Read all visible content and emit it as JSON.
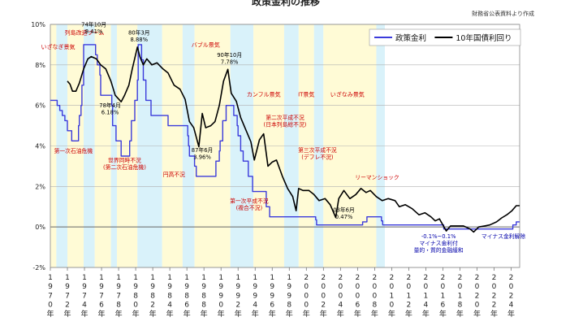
{
  "header": {
    "title_fragment": "政策金利の推移",
    "source": "財務省公表資料より作成"
  },
  "chart_data": {
    "type": "line",
    "title": "",
    "xlabel": "",
    "ylabel": "",
    "ylim": [
      -2,
      10
    ],
    "xlim": [
      1970,
      2025
    ],
    "yticks": [
      "10%",
      "8%",
      "6%",
      "4%",
      "2%",
      "0%",
      "-2%"
    ],
    "xtick_years": [
      "1970",
      "1972",
      "1974",
      "1976",
      "1978",
      "1980",
      "1982",
      "1984",
      "1986",
      "1988",
      "1990",
      "1992",
      "1994",
      "1996",
      "1998",
      "2000",
      "2002",
      "2004",
      "2006",
      "2008",
      "2010",
      "2012",
      "2014",
      "2016",
      "2018",
      "2020",
      "2022",
      "2024"
    ],
    "xtick_suffix": "年",
    "legend": {
      "position": "top-right",
      "entries": [
        {
          "label": "政策金利",
          "color": "#3b3bdb"
        },
        {
          "label": "10年国債利回り",
          "color": "#000000"
        }
      ]
    },
    "colors": {
      "policy": "#3b3bdb",
      "jgb": "#000000",
      "boom_band": "#fffbd6",
      "recession_band": "#d9f2fa",
      "event_text": "#cc0000",
      "annotation_text": "#000000",
      "minus_text": "#0000aa"
    },
    "bands": [
      {
        "kind": "boom",
        "from": 1970.0,
        "to": 1970.7
      },
      {
        "kind": "recession",
        "from": 1970.7,
        "to": 1972.0
      },
      {
        "kind": "boom",
        "from": 1972.0,
        "to": 1973.9
      },
      {
        "kind": "recession",
        "from": 1973.9,
        "to": 1975.2
      },
      {
        "kind": "boom",
        "from": 1975.2,
        "to": 1977.1
      },
      {
        "kind": "recession",
        "from": 1977.1,
        "to": 1977.8
      },
      {
        "kind": "boom",
        "from": 1977.8,
        "to": 1980.2
      },
      {
        "kind": "recession",
        "from": 1980.2,
        "to": 1983.1
      },
      {
        "kind": "boom",
        "from": 1983.1,
        "to": 1985.5
      },
      {
        "kind": "recession",
        "from": 1985.5,
        "to": 1986.9
      },
      {
        "kind": "boom",
        "from": 1986.9,
        "to": 1991.1
      },
      {
        "kind": "recession",
        "from": 1991.1,
        "to": 1993.8
      },
      {
        "kind": "boom",
        "from": 1993.8,
        "to": 1997.4
      },
      {
        "kind": "recession",
        "from": 1997.4,
        "to": 1999.1
      },
      {
        "kind": "boom",
        "from": 1999.1,
        "to": 2000.9
      },
      {
        "kind": "recession",
        "from": 2000.9,
        "to": 2002.0
      },
      {
        "kind": "boom",
        "from": 2002.0,
        "to": 2008.2
      },
      {
        "kind": "recession",
        "from": 2008.2,
        "to": 2009.2
      }
    ],
    "series": [
      {
        "name": "政策金利",
        "color": "#3b3bdb",
        "step": true,
        "points": [
          [
            1970.0,
            6.25
          ],
          [
            1970.8,
            6.0
          ],
          [
            1971.1,
            5.75
          ],
          [
            1971.4,
            5.5
          ],
          [
            1971.7,
            5.25
          ],
          [
            1972.0,
            4.75
          ],
          [
            1972.5,
            4.25
          ],
          [
            1973.3,
            5.0
          ],
          [
            1973.4,
            5.5
          ],
          [
            1973.6,
            6.0
          ],
          [
            1973.7,
            7.0
          ],
          [
            1973.9,
            9.0
          ],
          [
            1975.3,
            8.5
          ],
          [
            1975.5,
            8.0
          ],
          [
            1975.8,
            7.5
          ],
          [
            1975.9,
            6.5
          ],
          [
            1977.2,
            6.0
          ],
          [
            1977.3,
            5.0
          ],
          [
            1977.7,
            4.25
          ],
          [
            1978.3,
            3.5
          ],
          [
            1979.3,
            4.25
          ],
          [
            1979.5,
            5.25
          ],
          [
            1979.9,
            6.25
          ],
          [
            1980.2,
            7.25
          ],
          [
            1980.3,
            9.0
          ],
          [
            1980.7,
            8.25
          ],
          [
            1980.9,
            7.25
          ],
          [
            1981.2,
            6.25
          ],
          [
            1981.8,
            5.5
          ],
          [
            1983.8,
            5.0
          ],
          [
            1986.1,
            4.5
          ],
          [
            1986.2,
            4.0
          ],
          [
            1986.3,
            3.5
          ],
          [
            1986.9,
            3.0
          ],
          [
            1987.1,
            2.5
          ],
          [
            1989.4,
            3.25
          ],
          [
            1989.8,
            3.75
          ],
          [
            1989.9,
            4.25
          ],
          [
            1990.2,
            5.25
          ],
          [
            1990.6,
            6.0
          ],
          [
            1991.5,
            5.5
          ],
          [
            1991.9,
            5.0
          ],
          [
            1992.0,
            4.5
          ],
          [
            1992.3,
            3.75
          ],
          [
            1992.6,
            3.25
          ],
          [
            1993.2,
            2.5
          ],
          [
            1993.7,
            1.75
          ],
          [
            1995.3,
            1.0
          ],
          [
            1995.7,
            0.5
          ],
          [
            2001.1,
            0.35
          ],
          [
            2001.2,
            0.1
          ],
          [
            2006.6,
            0.25
          ],
          [
            2007.1,
            0.5
          ],
          [
            2008.8,
            0.3
          ],
          [
            2008.95,
            0.1
          ],
          [
            2016.1,
            -0.1
          ],
          [
            2024.2,
            0.1
          ],
          [
            2024.6,
            0.25
          ],
          [
            2025.0,
            0.25
          ]
        ]
      },
      {
        "name": "10年国債利回り",
        "color": "#000000",
        "step": false,
        "points": [
          [
            1972.0,
            7.2
          ],
          [
            1972.3,
            7.05
          ],
          [
            1972.6,
            6.7
          ],
          [
            1973.0,
            6.7
          ],
          [
            1973.4,
            7.1
          ],
          [
            1973.9,
            7.8
          ],
          [
            1974.4,
            8.3
          ],
          [
            1974.8,
            8.41
          ],
          [
            1975.4,
            8.3
          ],
          [
            1975.9,
            8.0
          ],
          [
            1976.5,
            7.8
          ],
          [
            1977.1,
            7.2
          ],
          [
            1977.6,
            6.5
          ],
          [
            1978.3,
            6.18
          ],
          [
            1978.7,
            6.5
          ],
          [
            1979.2,
            7.0
          ],
          [
            1979.6,
            7.8
          ],
          [
            1980.2,
            8.88
          ],
          [
            1980.5,
            8.4
          ],
          [
            1980.9,
            8.0
          ],
          [
            1981.3,
            8.3
          ],
          [
            1981.9,
            8.0
          ],
          [
            1982.5,
            8.1
          ],
          [
            1983.2,
            7.8
          ],
          [
            1983.8,
            7.6
          ],
          [
            1984.5,
            7.0
          ],
          [
            1985.2,
            6.8
          ],
          [
            1985.8,
            6.3
          ],
          [
            1986.3,
            5.2
          ],
          [
            1986.8,
            4.9
          ],
          [
            1987.4,
            3.96
          ],
          [
            1987.8,
            5.6
          ],
          [
            1988.2,
            4.9
          ],
          [
            1988.8,
            5.0
          ],
          [
            1989.3,
            5.2
          ],
          [
            1989.8,
            6.0
          ],
          [
            1990.3,
            7.2
          ],
          [
            1990.8,
            7.78
          ],
          [
            1991.2,
            6.6
          ],
          [
            1991.8,
            6.2
          ],
          [
            1992.3,
            5.4
          ],
          [
            1992.9,
            4.8
          ],
          [
            1993.5,
            4.2
          ],
          [
            1993.9,
            3.3
          ],
          [
            1994.5,
            4.3
          ],
          [
            1995.0,
            4.6
          ],
          [
            1995.5,
            3.0
          ],
          [
            1996.0,
            3.2
          ],
          [
            1996.5,
            3.3
          ],
          [
            1997.2,
            2.5
          ],
          [
            1997.8,
            1.9
          ],
          [
            1998.4,
            1.5
          ],
          [
            1998.8,
            0.8
          ],
          [
            1999.1,
            1.9
          ],
          [
            1999.6,
            1.8
          ],
          [
            2000.3,
            1.8
          ],
          [
            2000.9,
            1.6
          ],
          [
            2001.5,
            1.3
          ],
          [
            2002.2,
            1.4
          ],
          [
            2002.8,
            1.1
          ],
          [
            2003.45,
            0.47
          ],
          [
            2003.8,
            1.4
          ],
          [
            2004.4,
            1.8
          ],
          [
            2005.1,
            1.4
          ],
          [
            2005.8,
            1.6
          ],
          [
            2006.4,
            1.9
          ],
          [
            2007.0,
            1.7
          ],
          [
            2007.5,
            1.8
          ],
          [
            2008.2,
            1.5
          ],
          [
            2008.9,
            1.3
          ],
          [
            2009.6,
            1.4
          ],
          [
            2010.4,
            1.3
          ],
          [
            2010.9,
            1.0
          ],
          [
            2011.6,
            1.1
          ],
          [
            2012.4,
            0.9
          ],
          [
            2013.2,
            0.6
          ],
          [
            2013.9,
            0.7
          ],
          [
            2014.6,
            0.5
          ],
          [
            2015.1,
            0.3
          ],
          [
            2015.6,
            0.4
          ],
          [
            2016.4,
            -0.2
          ],
          [
            2016.9,
            0.05
          ],
          [
            2017.5,
            0.05
          ],
          [
            2018.4,
            0.05
          ],
          [
            2019.2,
            -0.1
          ],
          [
            2019.6,
            -0.25
          ],
          [
            2020.2,
            0.0
          ],
          [
            2020.9,
            0.05
          ],
          [
            2021.5,
            0.1
          ],
          [
            2022.3,
            0.25
          ],
          [
            2022.9,
            0.45
          ],
          [
            2023.5,
            0.6
          ],
          [
            2024.1,
            0.8
          ],
          [
            2024.6,
            1.05
          ],
          [
            2025.0,
            1.05
          ]
        ]
      }
    ],
    "event_labels": [
      {
        "text": "いざなぎ景気",
        "x": 1970.9,
        "y": 8.8
      },
      {
        "text": "列島改造ブーム",
        "x": 1974.0,
        "y": 9.5
      },
      {
        "text": "バブル景気",
        "x": 1988.2,
        "y": 8.9
      },
      {
        "text": "カンフル景気",
        "x": 1995.0,
        "y": 6.45
      },
      {
        "text": "IT景気",
        "x": 2000.0,
        "y": 6.45
      },
      {
        "text": "いざなみ景気",
        "x": 2004.8,
        "y": 6.45
      }
    ],
    "annotations": [
      {
        "lines": [
          "74年10月",
          "8.41%"
        ],
        "x": 1975.1,
        "y": 9.9,
        "color": "annotation_text"
      },
      {
        "lines": [
          "80年3月",
          "8.88%"
        ],
        "x": 1980.4,
        "y": 9.5,
        "color": "annotation_text"
      },
      {
        "lines": [
          "78年4月",
          "6.18%"
        ],
        "x": 1977.0,
        "y": 5.9,
        "color": "annotation_text"
      },
      {
        "lines": [
          "90年10月",
          "7.78%"
        ],
        "x": 1991.0,
        "y": 8.4,
        "color": "annotation_text"
      },
      {
        "lines": [
          "87年6月",
          "3.96%"
        ],
        "x": 1987.8,
        "y": 3.7,
        "color": "annotation_text"
      },
      {
        "lines": [
          "03年6月",
          "0.47%"
        ],
        "x": 2004.4,
        "y": 0.75,
        "color": "annotation_text"
      },
      {
        "lines": [
          "第一次石油危機"
        ],
        "x": 1972.7,
        "y": 3.65,
        "color": "event_text"
      },
      {
        "lines": [
          "世界同時不況",
          "(第二次石油危機)"
        ],
        "x": 1978.7,
        "y": 3.2,
        "color": "event_text"
      },
      {
        "lines": [
          "円高不況"
        ],
        "x": 1984.5,
        "y": 2.5,
        "color": "event_text"
      },
      {
        "lines": [
          "第二次平成不況",
          "(日本列島総不況)"
        ],
        "x": 1997.5,
        "y": 5.3,
        "color": "event_text"
      },
      {
        "lines": [
          "第三次平成不況",
          "(デフレ不況)"
        ],
        "x": 2001.3,
        "y": 3.7,
        "color": "event_text"
      },
      {
        "lines": [
          "第一次平成不況",
          "(複合不況)"
        ],
        "x": 1993.3,
        "y": 1.2,
        "color": "event_text"
      },
      {
        "lines": [
          "リーマンショック"
        ],
        "x": 2008.3,
        "y": 2.35,
        "color": "event_text"
      },
      {
        "lines": [
          "-0.1%~0.1%",
          "マイナス金利付",
          "量的・質的金融緩和"
        ],
        "x": 2015.5,
        "y": -0.55,
        "color": "minus_text"
      },
      {
        "lines": [
          "マイナス金利解除"
        ],
        "x": 2023.1,
        "y": -0.55,
        "color": "minus_text"
      }
    ]
  }
}
